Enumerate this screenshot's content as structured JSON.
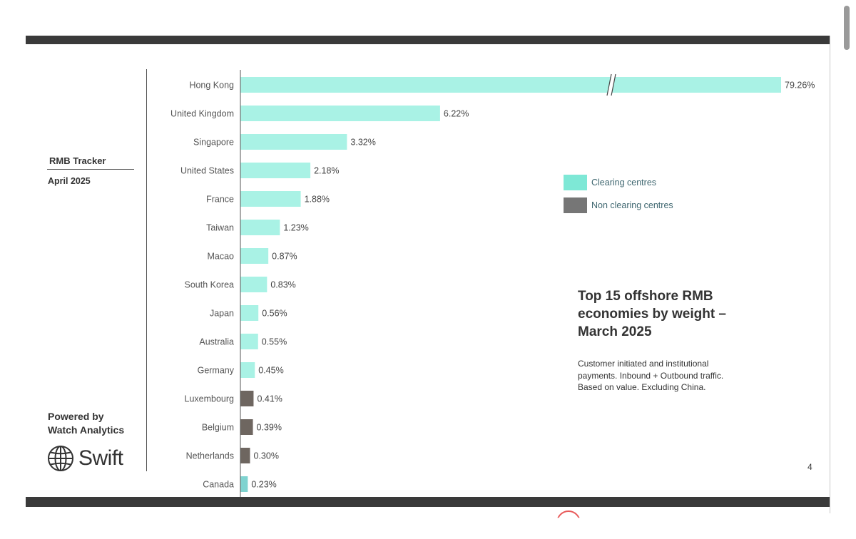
{
  "sidebar": {
    "title": "RMB Tracker",
    "date": "April 2025",
    "powered_line1": "Powered by",
    "powered_line2": "Watch Analytics",
    "logo_text": "Swift"
  },
  "legend": [
    {
      "label": "Clearing centres",
      "color": "#7ee8d6"
    },
    {
      "label": "Non clearing centres",
      "color": "#767676"
    }
  ],
  "heading": {
    "line1": "Top 15 offshore RMB",
    "line2": "economies by weight –",
    "line3": "March 2025"
  },
  "note": {
    "line1": "Customer initiated and institutional",
    "line2": "payments. Inbound + Outbound traffic.",
    "line3": "Based on value. Excluding China."
  },
  "page_number": "4",
  "colors": {
    "clearing": "#a9f2e5",
    "clearing_small": "#7fd3d0",
    "non_clearing": "#6e6660",
    "bars_dark": "#3a3a3a"
  },
  "chart_data": {
    "type": "bar",
    "orientation": "horizontal",
    "axis_break": true,
    "categories": [
      "Hong Kong",
      "United Kingdom",
      "Singapore",
      "United States",
      "France",
      "Taiwan",
      "Macao",
      "South Korea",
      "Japan",
      "Australia",
      "Germany",
      "Luxembourg",
      "Belgium",
      "Netherlands",
      "Canada"
    ],
    "values": [
      79.26,
      6.22,
      3.32,
      2.18,
      1.88,
      1.23,
      0.87,
      0.83,
      0.56,
      0.55,
      0.45,
      0.41,
      0.39,
      0.3,
      0.23
    ],
    "value_labels": [
      "79.26%",
      "6.22%",
      "3.32%",
      "2.18%",
      "1.88%",
      "1.23%",
      "0.87%",
      "0.83%",
      "0.56%",
      "0.55%",
      "0.45%",
      "0.41%",
      "0.39%",
      "0.30%",
      "0.23%"
    ],
    "centre_type": [
      "clearing",
      "clearing",
      "clearing",
      "clearing",
      "clearing",
      "clearing",
      "clearing",
      "clearing",
      "clearing",
      "clearing",
      "clearing",
      "non_clearing",
      "non_clearing",
      "non_clearing",
      "clearing"
    ],
    "unit": "%"
  }
}
